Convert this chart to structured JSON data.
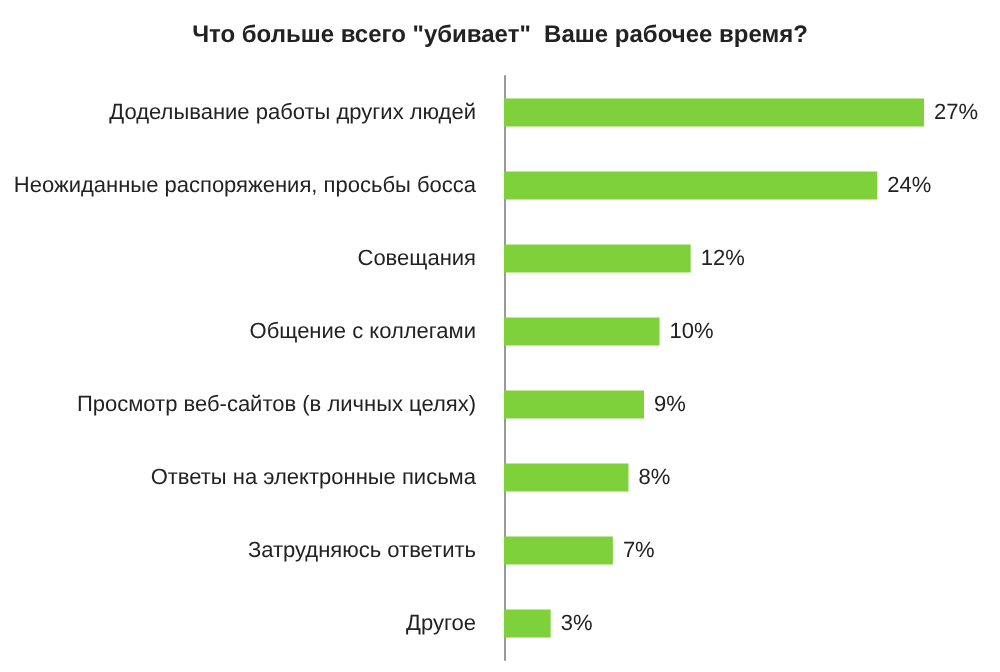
{
  "chart_data": {
    "type": "bar",
    "orientation": "horizontal",
    "title": "Что больше всего \"убивает\"  Ваше рабочее время?",
    "categories": [
      "Доделывание работы других людей",
      "Неожиданные распоряжения, просьбы босса",
      "Совещания",
      "Общение с коллегами",
      "Просмотр веб-сайтов (в личных целях)",
      "Ответы на электронные письма",
      "Затрудняюсь ответить",
      "Другое"
    ],
    "values": [
      27,
      24,
      12,
      10,
      9,
      8,
      7,
      3
    ],
    "value_labels": [
      "27%",
      "24%",
      "12%",
      "10%",
      "9%",
      "8%",
      "7%",
      "3%"
    ],
    "color": "#7fd13b",
    "grid": false
  }
}
